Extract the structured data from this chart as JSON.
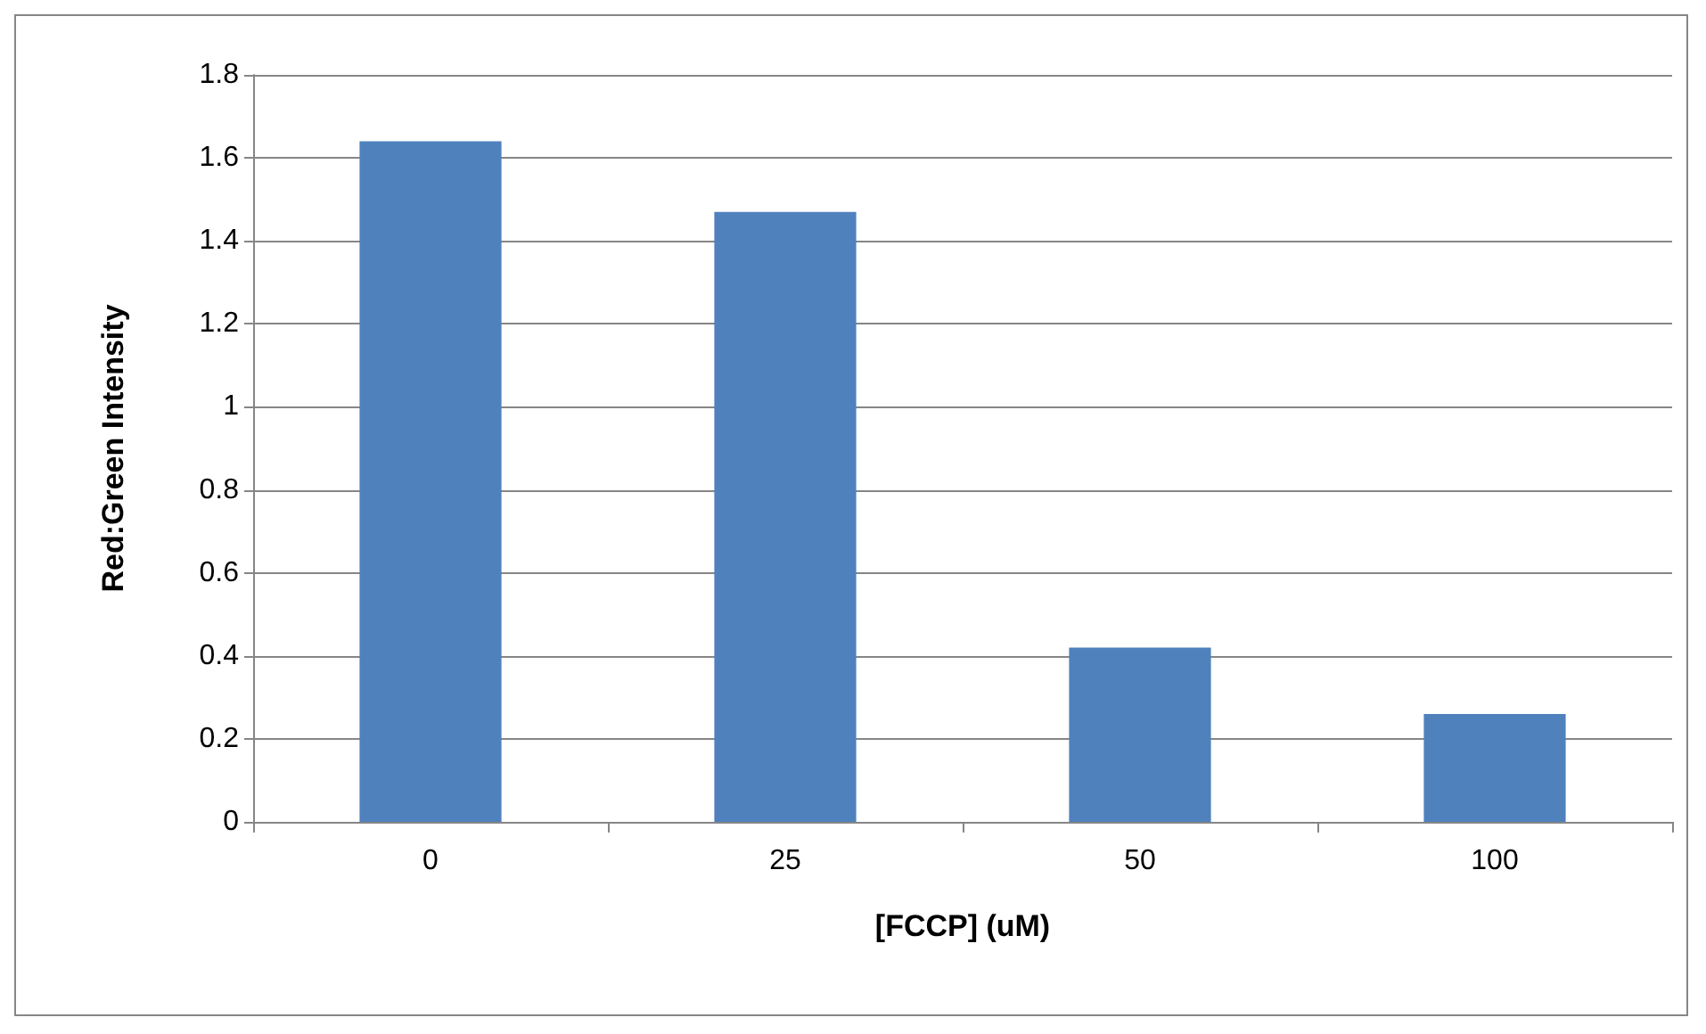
{
  "chart_data": {
    "type": "bar",
    "categories": [
      "0",
      "25",
      "50",
      "100"
    ],
    "values": [
      1.64,
      1.47,
      0.42,
      0.26
    ],
    "color": "#4f81bd",
    "xlabel": "[FCCP] (uM)",
    "ylabel": "Red:Green Intensity",
    "ylim": [
      0,
      1.8
    ],
    "yticks": [
      0,
      0.2,
      0.4,
      0.6,
      0.8,
      1,
      1.2,
      1.4,
      1.6,
      1.8
    ],
    "grid": "y"
  }
}
